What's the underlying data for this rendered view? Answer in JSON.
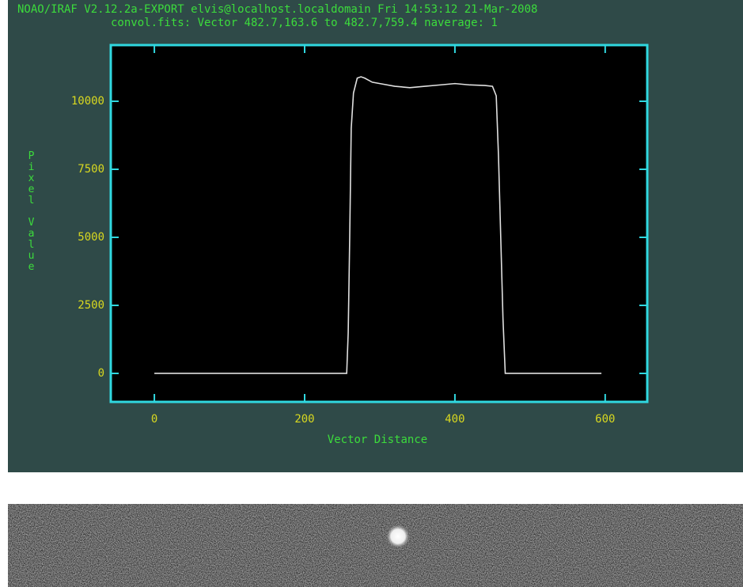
{
  "chart_data": {
    "type": "line",
    "title": "NOAO/IRAF V2.12.2a-EXPORT elvis@localhost.localdomain Fri 14:53:12 21-Mar-2008",
    "subtitle": "convol.fits: Vector 482.7,163.6 to 482.7,759.4 naverage: 1",
    "x_label": "Vector Distance",
    "y_label": "Pixel Value",
    "x": [
      0,
      50,
      100,
      150,
      200,
      250,
      256,
      258,
      260,
      262,
      265,
      270,
      275,
      280,
      290,
      300,
      320,
      340,
      360,
      380,
      400,
      420,
      440,
      450,
      455,
      458,
      461,
      464,
      467,
      470,
      500,
      550,
      595
    ],
    "series": [
      {
        "color": "#e0e0e0",
        "values": [
          0,
          0,
          0,
          0,
          0,
          0,
          0,
          1500,
          5000,
          9000,
          10300,
          10850,
          10900,
          10850,
          10700,
          10650,
          10550,
          10500,
          10550,
          10600,
          10650,
          10600,
          10580,
          10550,
          10200,
          8000,
          5000,
          2000,
          0,
          0,
          0,
          0,
          0
        ]
      }
    ],
    "xlim": [
      -58,
      656
    ],
    "ylim": [
      -1047,
      12064
    ],
    "xticks": [
      0,
      200,
      400,
      600
    ],
    "yticks": [
      0,
      2500,
      5000,
      7500,
      10000
    ]
  }
}
